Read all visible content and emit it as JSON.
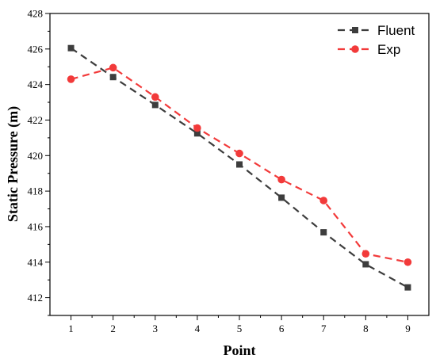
{
  "chart_data": {
    "type": "line",
    "x": [
      1,
      2,
      3,
      4,
      5,
      6,
      7,
      8,
      9
    ],
    "series": [
      {
        "name": "Fluent",
        "color": "#3d3d3d",
        "marker": "square",
        "line_style": "dashed",
        "values": [
          426.05,
          424.42,
          422.85,
          421.25,
          419.5,
          417.63,
          415.68,
          413.88,
          412.58
        ]
      },
      {
        "name": "Exp",
        "color": "#f23a3a",
        "marker": "circle",
        "line_style": "dashed",
        "values": [
          424.3,
          424.95,
          423.3,
          421.55,
          420.12,
          418.65,
          417.47,
          414.47,
          414.0
        ]
      }
    ],
    "xlabel": "Point",
    "ylabel": "Static Pressure (m)",
    "xlim": [
      0.5,
      9.5
    ],
    "ylim": [
      411,
      428
    ],
    "x_ticks": [
      "1",
      "2",
      "3",
      "4",
      "5",
      "6",
      "7",
      "8",
      "9"
    ],
    "y_ticks": [
      "412",
      "414",
      "416",
      "418",
      "420",
      "422",
      "424",
      "426",
      "428"
    ],
    "grid": false,
    "legend_position": "top-right"
  }
}
